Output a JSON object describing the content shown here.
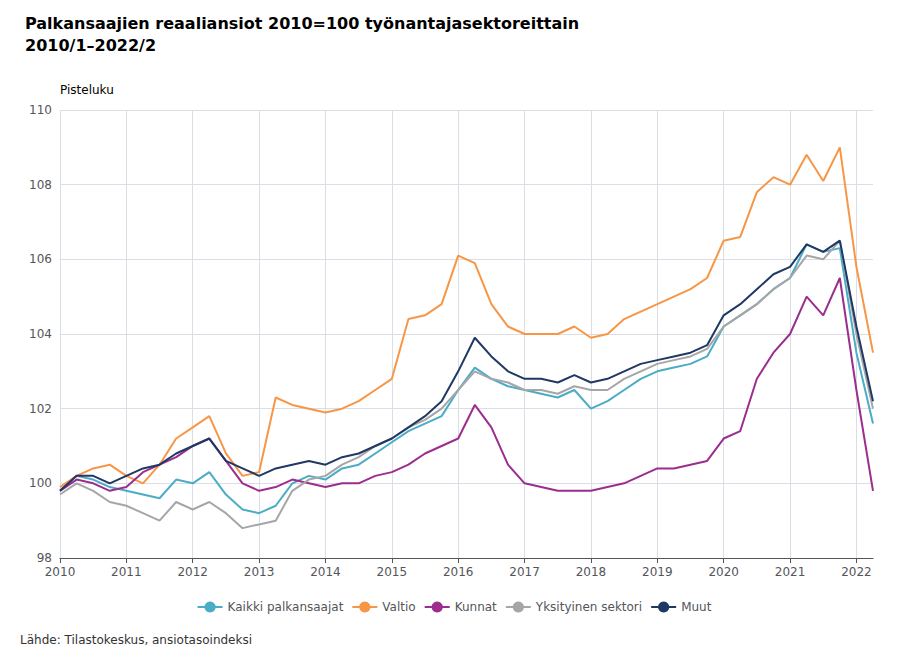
{
  "chart_data": {
    "type": "line",
    "title": "Palkansaajien reaaliansiot 2010=100 työnantajasektoreittain",
    "subtitle": "2010/1–2022/2",
    "y_label": "Pisteluku",
    "annotations": [
      "Lähde: Tilastokeskus, ansiotasoindeksi"
    ],
    "categories": [
      "2010",
      null,
      null,
      null,
      "2011",
      null,
      null,
      null,
      "2012",
      null,
      null,
      null,
      "2013",
      null,
      null,
      null,
      "2014",
      null,
      null,
      null,
      "2015",
      null,
      null,
      null,
      "2016",
      null,
      null,
      null,
      "2017",
      null,
      null,
      null,
      "2018",
      null,
      null,
      null,
      "2019",
      null,
      null,
      null,
      "2020",
      null,
      null,
      null,
      "2021",
      null,
      null,
      null,
      "2022",
      null
    ],
    "ylim": [
      98,
      110
    ],
    "yticks": [
      98,
      100,
      102,
      104,
      106,
      108,
      110
    ],
    "grid": true,
    "legend": "bottom",
    "series": [
      {
        "name": "Kaikki palkansaajat",
        "color": "#4BACC6",
        "values": [
          99.8,
          100.2,
          100.1,
          99.9,
          99.8,
          99.7,
          99.6,
          100.1,
          100.0,
          100.3,
          99.7,
          99.3,
          99.2,
          99.4,
          100.0,
          100.2,
          100.1,
          100.4,
          100.5,
          100.8,
          101.1,
          101.4,
          101.6,
          101.8,
          102.5,
          103.1,
          102.8,
          102.6,
          102.5,
          102.4,
          102.3,
          102.5,
          102.0,
          102.2,
          102.5,
          102.8,
          103.0,
          103.1,
          103.2,
          103.4,
          104.2,
          104.5,
          104.8,
          105.2,
          105.5,
          106.4,
          106.2,
          106.3,
          103.5,
          101.6
        ]
      },
      {
        "name": "Valtio",
        "color": "#F79646",
        "values": [
          99.9,
          100.2,
          100.4,
          100.5,
          100.2,
          100.0,
          100.5,
          101.2,
          101.5,
          101.8,
          100.8,
          100.2,
          100.3,
          102.3,
          102.1,
          102.0,
          101.9,
          102.0,
          102.2,
          102.5,
          102.8,
          104.4,
          104.5,
          104.8,
          106.1,
          105.9,
          104.8,
          104.2,
          104.0,
          104.0,
          104.0,
          104.2,
          103.9,
          104.0,
          104.4,
          104.6,
          104.8,
          105.0,
          105.2,
          105.5,
          106.5,
          106.6,
          107.8,
          108.2,
          108.0,
          108.8,
          108.1,
          109.0,
          105.8,
          103.5
        ]
      },
      {
        "name": "Kunnat",
        "color": "#9B2D8E",
        "values": [
          99.8,
          100.1,
          100.0,
          99.8,
          99.9,
          100.3,
          100.5,
          100.7,
          101.0,
          101.2,
          100.6,
          100.0,
          99.8,
          99.9,
          100.1,
          100.0,
          99.9,
          100.0,
          100.0,
          100.2,
          100.3,
          100.5,
          100.8,
          101.0,
          101.2,
          102.1,
          101.5,
          100.5,
          100.0,
          99.9,
          99.8,
          99.8,
          99.8,
          99.9,
          100.0,
          100.2,
          100.4,
          100.4,
          100.5,
          100.6,
          101.2,
          101.4,
          102.8,
          103.5,
          104.0,
          105.0,
          104.5,
          105.5,
          102.5,
          99.8
        ]
      },
      {
        "name": "Yksityinen sektori",
        "color": "#A6A6A6",
        "values": [
          99.7,
          100.0,
          99.8,
          99.5,
          99.4,
          99.2,
          99.0,
          99.5,
          99.3,
          99.5,
          99.2,
          98.8,
          98.9,
          99.0,
          99.8,
          100.1,
          100.2,
          100.5,
          100.7,
          101.0,
          101.2,
          101.5,
          101.7,
          102.0,
          102.5,
          103.0,
          102.8,
          102.7,
          102.5,
          102.5,
          102.4,
          102.6,
          102.5,
          102.5,
          102.8,
          103.0,
          103.2,
          103.3,
          103.4,
          103.6,
          104.2,
          104.5,
          104.8,
          105.2,
          105.5,
          106.1,
          106.0,
          106.5,
          104.0,
          102.0
        ]
      },
      {
        "name": "Muut",
        "color": "#1F3864",
        "values": [
          99.8,
          100.2,
          100.2,
          100.0,
          100.2,
          100.4,
          100.5,
          100.8,
          101.0,
          101.2,
          100.6,
          100.4,
          100.2,
          100.4,
          100.5,
          100.6,
          100.5,
          100.7,
          100.8,
          101.0,
          101.2,
          101.5,
          101.8,
          102.2,
          103.0,
          103.9,
          103.4,
          103.0,
          102.8,
          102.8,
          102.7,
          102.9,
          102.7,
          102.8,
          103.0,
          103.2,
          103.3,
          103.4,
          103.5,
          103.7,
          104.5,
          104.8,
          105.2,
          105.6,
          105.8,
          106.4,
          106.2,
          106.5,
          104.2,
          102.2
        ]
      }
    ]
  }
}
